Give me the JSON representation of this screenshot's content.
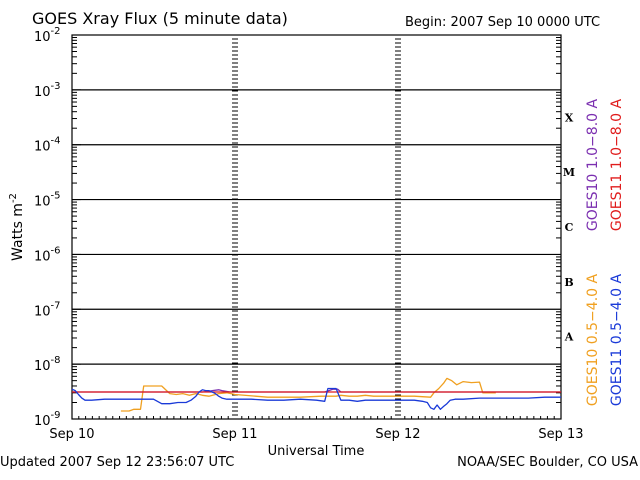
{
  "chart_data": {
    "type": "line",
    "title": "GOES Xray Flux (5 minute data)",
    "begin_label": "Begin:  2007 Sep 10 0000 UTC",
    "xlabel": "Universal Time",
    "ylabel": "Watts m",
    "ylabel_exp": "-2",
    "y_scale": "log",
    "ylim_exp": [
      -9,
      -2
    ],
    "y_ticks": [
      {
        "exp": -2,
        "label_base": "10",
        "label_exp": "-2"
      },
      {
        "exp": -3,
        "label_base": "10",
        "label_exp": "-3"
      },
      {
        "exp": -4,
        "label_base": "10",
        "label_exp": "-4"
      },
      {
        "exp": -5,
        "label_base": "10",
        "label_exp": "-5"
      },
      {
        "exp": -6,
        "label_base": "10",
        "label_exp": "-6"
      },
      {
        "exp": -7,
        "label_base": "10",
        "label_exp": "-7"
      },
      {
        "exp": -8,
        "label_base": "10",
        "label_exp": "-8"
      },
      {
        "exp": -9,
        "label_base": "10",
        "label_exp": "-9"
      }
    ],
    "gridlines_exp": [
      -3,
      -4,
      -5,
      -6,
      -7,
      -8
    ],
    "x_range_days": [
      0,
      3
    ],
    "x_ticks": [
      {
        "day": 0,
        "label": "Sep 10"
      },
      {
        "day": 1,
        "label": "Sep 11"
      },
      {
        "day": 2,
        "label": "Sep 12"
      },
      {
        "day": 3,
        "label": "Sep 13"
      }
    ],
    "flare_classes": [
      {
        "label": "X",
        "exp_low": -4,
        "exp_high": -3
      },
      {
        "label": "M",
        "exp_low": -5,
        "exp_high": -4
      },
      {
        "label": "C",
        "exp_low": -6,
        "exp_high": -5
      },
      {
        "label": "B",
        "exp_low": -7,
        "exp_high": -6
      },
      {
        "label": "A",
        "exp_low": -8,
        "exp_high": -7
      }
    ],
    "legend_right": [
      {
        "name": "GOES10 1.0−8.0 A",
        "color": "#7b2fb0"
      },
      {
        "name": "GOES11 1.0−8.0 A",
        "color": "#e01c1c"
      }
    ],
    "legend_lower": [
      {
        "name": "GOES10 0.5−4.0 A",
        "color": "#f0a020"
      },
      {
        "name": "GOES11 0.5−4.0 A",
        "color": "#1a3ad8"
      }
    ],
    "series": [
      {
        "name": "GOES10 0.5−4.0 A",
        "color": "#f0a020",
        "x": [
          0.3,
          0.32,
          0.35,
          0.38,
          0.42,
          0.44,
          0.47,
          0.5,
          0.55,
          0.6,
          0.64,
          0.68,
          0.72,
          0.76,
          0.8,
          0.84,
          0.9,
          0.95,
          1.0,
          1.2,
          1.4,
          1.53,
          1.62,
          1.65,
          1.7,
          1.75,
          1.8,
          1.85,
          1.9,
          1.95,
          2.0,
          2.1,
          2.2,
          2.22,
          2.25,
          2.28,
          2.3,
          2.33,
          2.36,
          2.4,
          2.45,
          2.5,
          2.52,
          2.55,
          2.6
        ],
        "y": [
          1.4e-09,
          1.4e-09,
          1.4e-09,
          1.5e-09,
          1.5e-09,
          4e-09,
          4e-09,
          4e-09,
          4e-09,
          2.9e-09,
          2.8e-09,
          2.9e-09,
          2.7e-09,
          2.9e-09,
          2.7e-09,
          2.6e-09,
          2.9e-09,
          3e-09,
          2.8e-09,
          2.5e-09,
          2.5e-09,
          2.6e-09,
          2.6e-09,
          2.7e-09,
          2.6e-09,
          2.6e-09,
          2.7e-09,
          2.6e-09,
          2.6e-09,
          2.6e-09,
          2.6e-09,
          2.6e-09,
          2.5e-09,
          3e-09,
          3.6e-09,
          4.5e-09,
          5.5e-09,
          5e-09,
          4.2e-09,
          4.8e-09,
          4.6e-09,
          4.7e-09,
          3e-09,
          3e-09,
          3e-09
        ]
      },
      {
        "name": "GOES10 1.0−8.0 A",
        "color": "#7b2fb0",
        "x": [
          0.0,
          0.2,
          0.6,
          0.8,
          0.84,
          0.86,
          0.9,
          0.92,
          0.97,
          1.0,
          1.5,
          1.55,
          1.6,
          1.63,
          1.65,
          1.7,
          2.0,
          2.5,
          2.7,
          3.0
        ],
        "y": [
          3.1e-09,
          3.1e-09,
          3.1e-09,
          3.1e-09,
          3.2e-09,
          3.3e-09,
          3.4e-09,
          3.3e-09,
          3.1e-09,
          3.1e-09,
          3.1e-09,
          3.1e-09,
          3.5e-09,
          3.5e-09,
          3.1e-09,
          3.1e-09,
          3.1e-09,
          3.1e-09,
          3.1e-09,
          3.1e-09
        ]
      },
      {
        "name": "GOES11 1.0−8.0 A",
        "color": "#e01c1c",
        "x": [
          0.0,
          0.5,
          1.0,
          1.5,
          2.0,
          2.5,
          3.0
        ],
        "y": [
          3.1e-09,
          3.1e-09,
          3.1e-09,
          3.1e-09,
          3.1e-09,
          3.1e-09,
          3.1e-09
        ]
      },
      {
        "name": "GOES11 0.5−4.0 A",
        "color": "#1a3ad8",
        "x": [
          0.0,
          0.02,
          0.04,
          0.06,
          0.08,
          0.12,
          0.2,
          0.28,
          0.4,
          0.5,
          0.55,
          0.6,
          0.65,
          0.7,
          0.73,
          0.76,
          0.78,
          0.8,
          0.82,
          0.84,
          0.86,
          0.88,
          0.9,
          0.92,
          0.95,
          1.0,
          1.1,
          1.2,
          1.3,
          1.4,
          1.5,
          1.55,
          1.57,
          1.6,
          1.62,
          1.65,
          1.7,
          1.75,
          1.8,
          1.9,
          2.0,
          2.1,
          2.15,
          2.18,
          2.2,
          2.22,
          2.24,
          2.26,
          2.28,
          2.3,
          2.32,
          2.35,
          2.4,
          2.5,
          2.6,
          2.7,
          2.8,
          2.9,
          3.0
        ],
        "y": [
          3.5e-09,
          3.3e-09,
          2.8e-09,
          2.4e-09,
          2.2e-09,
          2.2e-09,
          2.3e-09,
          2.3e-09,
          2.3e-09,
          2.3e-09,
          1.9e-09,
          1.9e-09,
          2e-09,
          2e-09,
          2.2e-09,
          2.6e-09,
          3.1e-09,
          3.4e-09,
          3.3e-09,
          3.3e-09,
          3.1e-09,
          2.9e-09,
          2.6e-09,
          2.4e-09,
          2.3e-09,
          2.3e-09,
          2.3e-09,
          2.2e-09,
          2.2e-09,
          2.3e-09,
          2.2e-09,
          2.1e-09,
          3.6e-09,
          3.6e-09,
          3.6e-09,
          2.2e-09,
          2.2e-09,
          2.1e-09,
          2.2e-09,
          2.2e-09,
          2.2e-09,
          2.2e-09,
          2.1e-09,
          2e-09,
          1.6e-09,
          1.5e-09,
          1.8e-09,
          1.5e-09,
          1.7e-09,
          1.9e-09,
          2.2e-09,
          2.3e-09,
          2.3e-09,
          2.4e-09,
          2.4e-09,
          2.4e-09,
          2.4e-09,
          2.5e-09,
          2.5e-09
        ]
      }
    ],
    "grid": true
  },
  "footer": {
    "updated": "Updated 2007 Sep 12 23:56:07 UTC",
    "source": "NOAA/SEC Boulder, CO USA"
  }
}
